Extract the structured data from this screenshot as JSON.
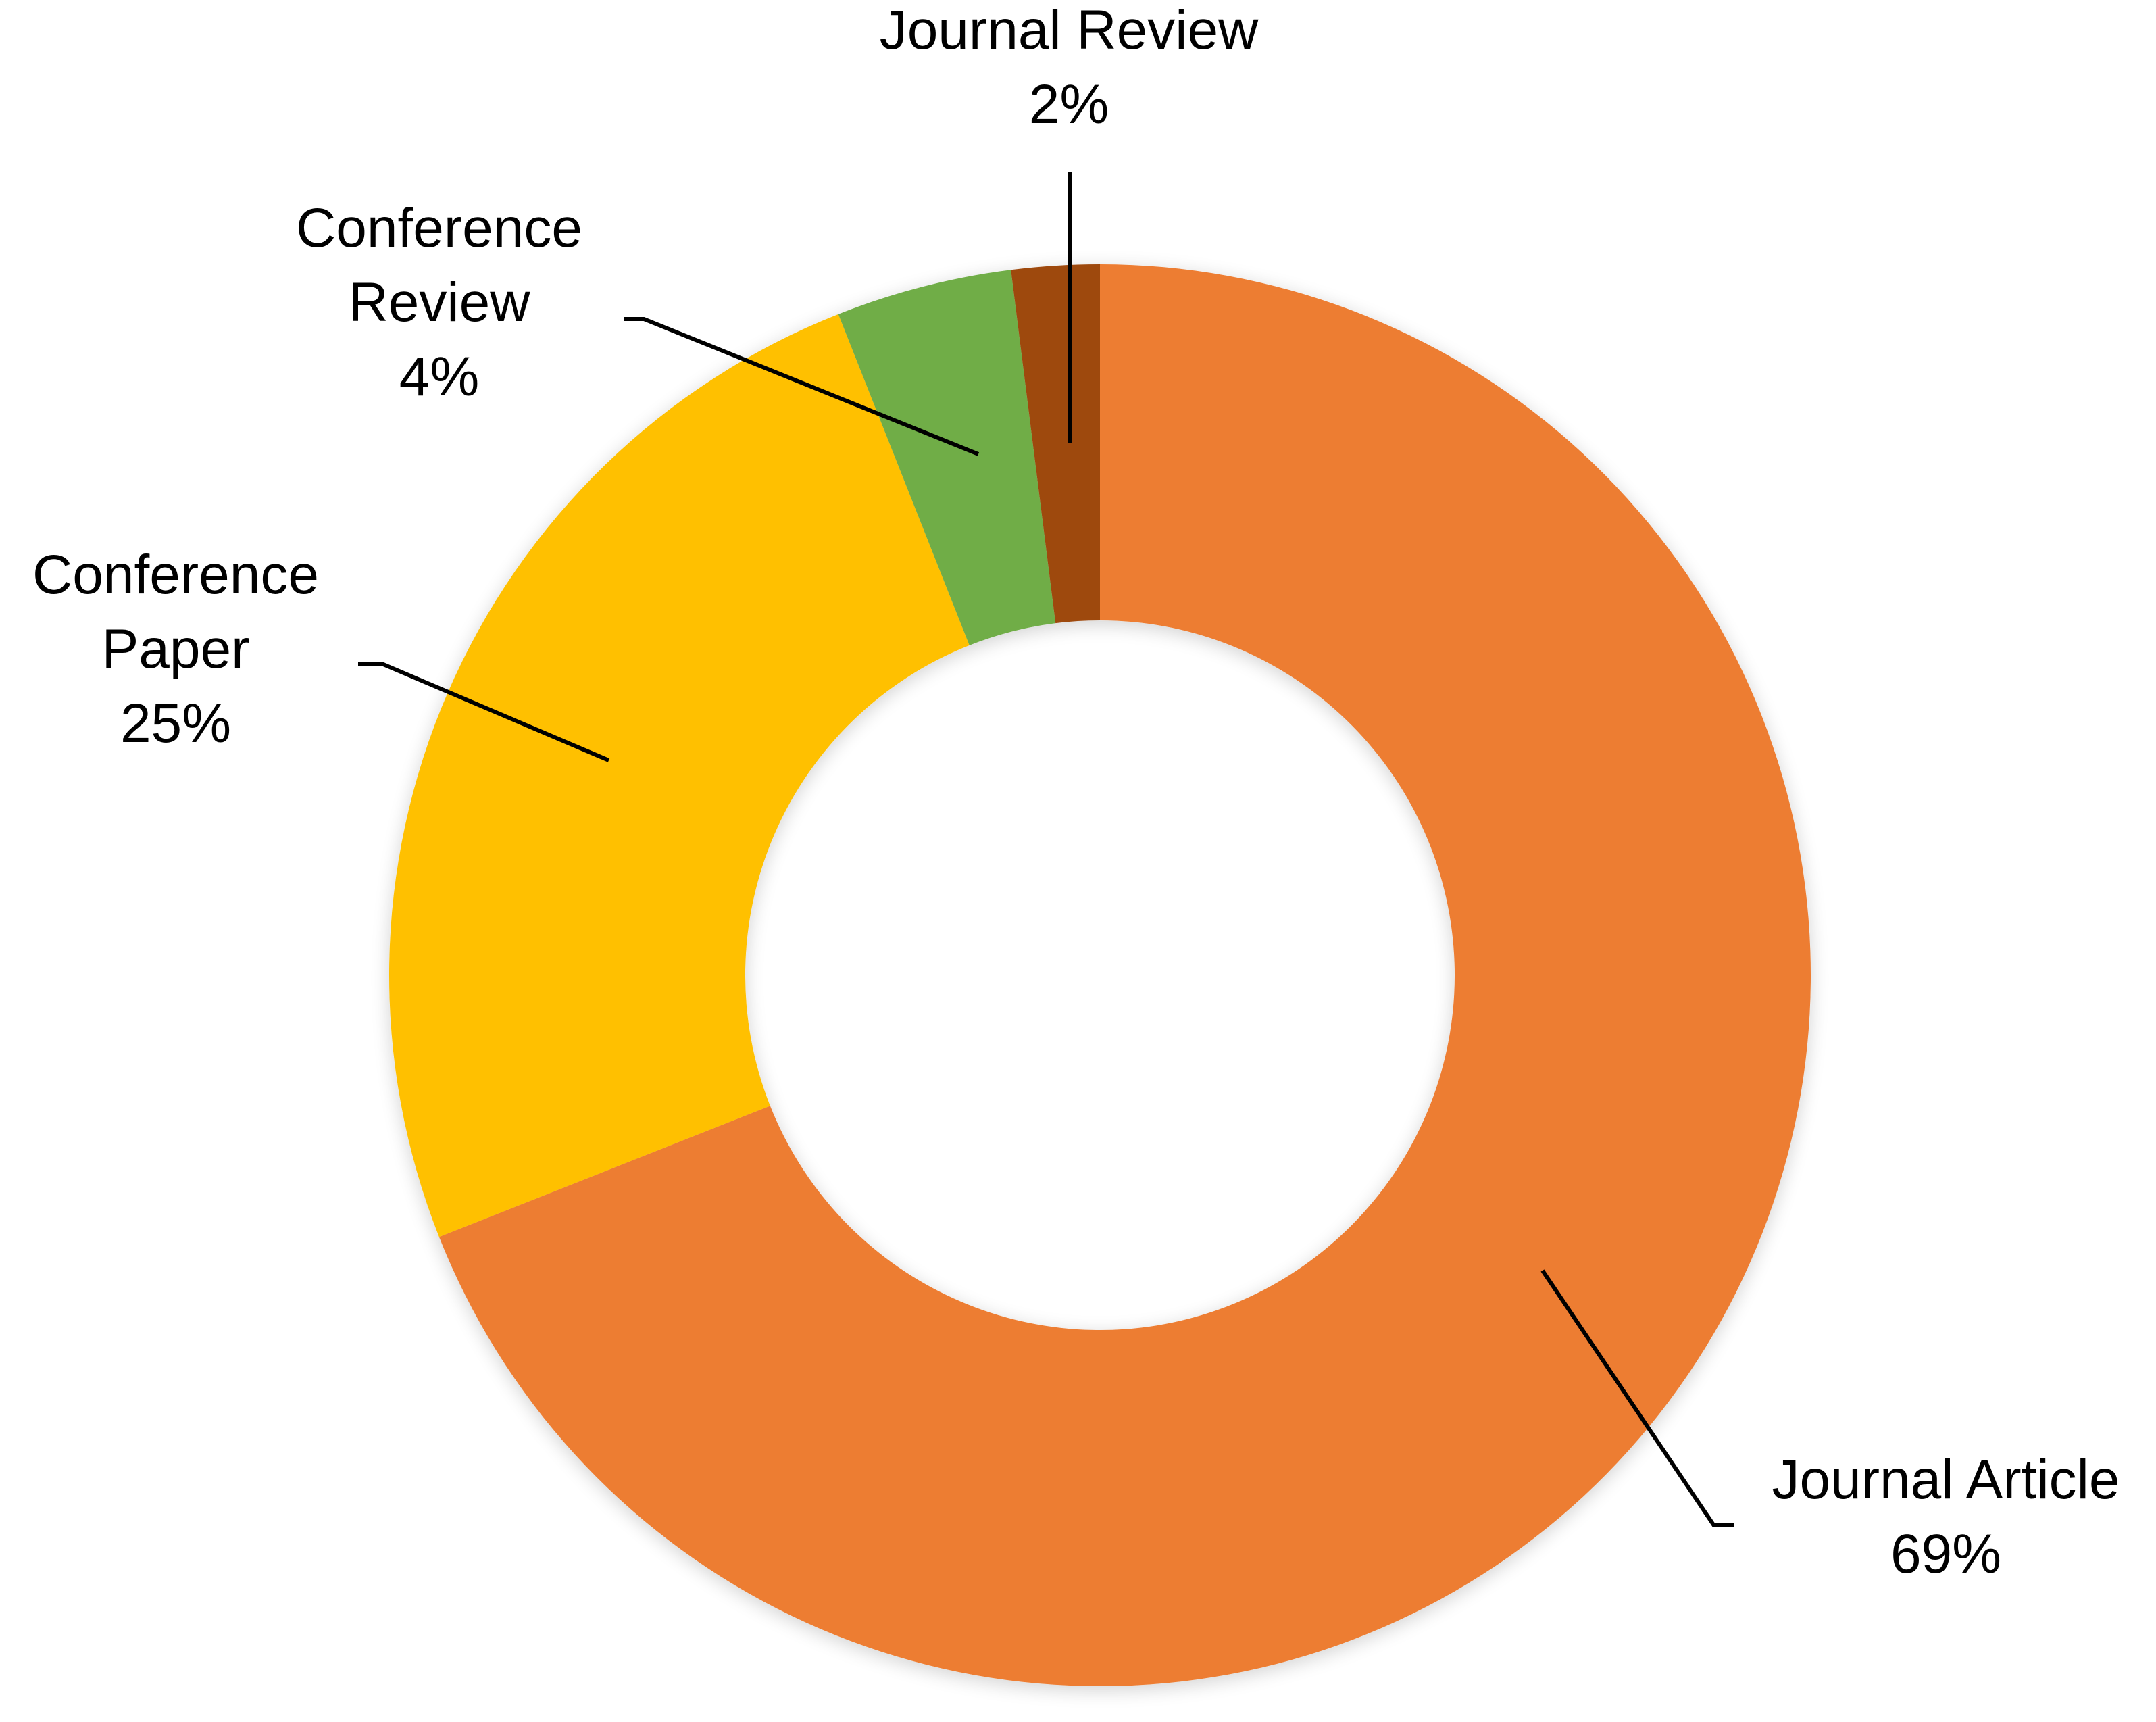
{
  "chart_data": {
    "type": "pie",
    "variant": "donut",
    "title": "",
    "labels_outside": true,
    "start_angle_deg": 0,
    "direction": "clockwise",
    "slices": [
      {
        "label_lines": [
          "Journal Article"
        ],
        "label": "Journal Article",
        "value": 69,
        "value_label": "69%",
        "color": "#ED7D31"
      },
      {
        "label_lines": [
          "Conference",
          "Paper"
        ],
        "label": "Conference Paper",
        "value": 25,
        "value_label": "25%",
        "color": "#FFC000"
      },
      {
        "label_lines": [
          "Conference",
          "Review"
        ],
        "label": "Conference Review",
        "value": 4,
        "value_label": "4%",
        "color": "#70AD47"
      },
      {
        "label_lines": [
          "Journal Review"
        ],
        "label": "Journal Review",
        "value": 2,
        "value_label": "2%",
        "color": "#9E480E"
      }
    ]
  }
}
